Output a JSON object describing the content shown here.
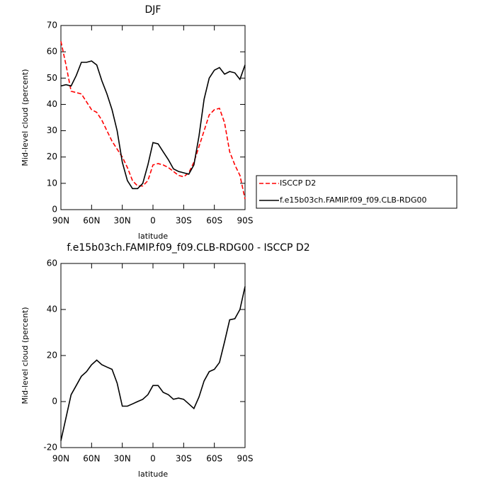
{
  "chart_data": [
    {
      "type": "line",
      "title": "DJF",
      "xlabel": "latitude",
      "ylabel": "Mid-level cloud (percent)",
      "x": [
        90,
        85,
        80,
        75,
        70,
        65,
        60,
        55,
        50,
        45,
        40,
        35,
        30,
        25,
        20,
        15,
        10,
        5,
        0,
        -5,
        -10,
        -15,
        -20,
        -25,
        -30,
        -35,
        -40,
        -45,
        -50,
        -55,
        -60,
        -65,
        -70,
        -75,
        -80,
        -85,
        -90
      ],
      "series": [
        {
          "name": "ISCCP D2",
          "color": "#ff0000",
          "dash": true,
          "values": [
            64,
            55,
            45,
            44.5,
            44,
            41,
            38,
            37,
            34,
            30,
            26,
            23,
            20,
            16,
            11,
            9,
            9,
            11,
            17,
            17.5,
            17,
            16,
            14.5,
            13,
            12.5,
            14,
            18,
            24,
            30,
            36,
            38,
            38.5,
            33,
            22,
            17,
            13,
            4
          ]
        },
        {
          "name": "f.e15b03ch.FAMIP.f09_f09.CLB-RDG00",
          "color": "#000000",
          "dash": false,
          "values": [
            47,
            47.5,
            47,
            51,
            56,
            56,
            56.5,
            55,
            49,
            44,
            38,
            30,
            18,
            11,
            8,
            8,
            10,
            17,
            25.5,
            25,
            22,
            19,
            15.5,
            14.5,
            14,
            13.5,
            17,
            28,
            42,
            50,
            53,
            54,
            51.5,
            52.5,
            52,
            49.5,
            55
          ]
        }
      ],
      "xlim": [
        90,
        -90
      ],
      "xticks": [
        {
          "value": 90,
          "label": "90N"
        },
        {
          "value": 60,
          "label": "60N"
        },
        {
          "value": 30,
          "label": "30N"
        },
        0,
        {
          "value": -30,
          "label": "30S"
        },
        {
          "value": -60,
          "label": "60S"
        },
        {
          "value": -90,
          "label": "90S"
        }
      ],
      "ylim": [
        0,
        70
      ],
      "yticks": [
        0,
        10,
        20,
        30,
        40,
        50,
        60,
        70
      ],
      "legend": "right"
    },
    {
      "type": "line",
      "title": "f.e15b03ch.FAMIP.f09_f09.CLB-RDG00 - ISCCP D2",
      "xlabel": "latitude",
      "ylabel": "Mid-level cloud (percent)",
      "x": [
        90,
        85,
        80,
        75,
        70,
        65,
        60,
        55,
        50,
        45,
        40,
        35,
        30,
        25,
        20,
        15,
        10,
        5,
        0,
        -5,
        -10,
        -15,
        -20,
        -25,
        -30,
        -35,
        -40,
        -45,
        -50,
        -55,
        -60,
        -65,
        -70,
        -75,
        -80,
        -85,
        -90
      ],
      "series": [
        {
          "color": "#000000",
          "dash": false,
          "values": [
            -17,
            -7,
            3,
            7,
            11,
            13,
            16,
            18,
            16,
            15,
            14,
            8,
            -2,
            -2,
            -1,
            0,
            1,
            3,
            7,
            7,
            4,
            3,
            1,
            1.5,
            1,
            -1,
            -3,
            2,
            9,
            13,
            14,
            17,
            26,
            35.5,
            36,
            40,
            50
          ]
        }
      ],
      "xlim": [
        90,
        -90
      ],
      "xticks": [
        {
          "value": 90,
          "label": "90N"
        },
        {
          "value": 60,
          "label": "60N"
        },
        {
          "value": 30,
          "label": "30N"
        },
        0,
        {
          "value": -30,
          "label": "30S"
        },
        {
          "value": -60,
          "label": "60S"
        },
        {
          "value": -90,
          "label": "90S"
        }
      ],
      "ylim": [
        -20,
        60
      ],
      "yticks": [
        -20,
        0,
        20,
        40,
        60
      ]
    }
  ]
}
